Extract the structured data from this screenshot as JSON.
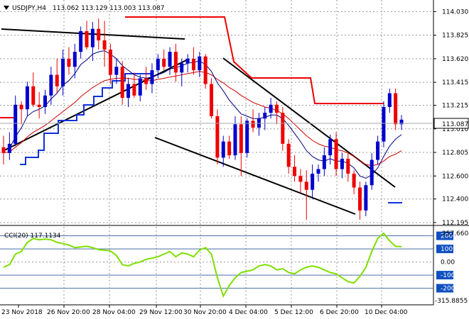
{
  "header": {
    "symbol_label": "USDJPY,H4",
    "ohlc": "113.062 113.129 113.003 113.087"
  },
  "indicator": {
    "label": "CCI(20) 117.1134",
    "scale_top": "257.6604",
    "scale_bottom": "-315.8855",
    "levels": [
      "200",
      "100",
      "0.00",
      "-100",
      "-200"
    ],
    "highlighted_levels": [
      "200",
      "100",
      "-100",
      "-200"
    ],
    "level_values": [
      200,
      100,
      0,
      -100,
      -200
    ],
    "range": [
      -315.8855,
      257.6604
    ]
  },
  "colors": {
    "bull": "#0000cc",
    "bear": "#ee0000",
    "cci": "#7fe000",
    "price_tag_bg": "#ffffff",
    "level_tag_bg": "#1050c0",
    "grid": "#9a9a9a"
  },
  "chart_data": {
    "type": "candlestick",
    "instrument": "USDJPY",
    "timeframe": "H4",
    "last_price": "113.087",
    "y_ticks": [
      "114.030",
      "113.825",
      "113.620",
      "113.415",
      "113.215",
      "113.010",
      "112.805",
      "112.600",
      "112.400",
      "112.195"
    ],
    "ylim": [
      112.17,
      114.1
    ],
    "x_ticks": [
      "23 Nov 2018",
      "26 Nov 20:00",
      "28 Nov 04:00",
      "29 Nov 12:00",
      "30 Nov 20:00",
      "4 Dec 04:00",
      "5 Dec 12:00",
      "6 Dec 20:00",
      "10 Dec 04:00"
    ],
    "candles": [
      [
        112.85,
        112.95,
        112.7,
        112.8
      ],
      [
        112.8,
        112.98,
        112.74,
        112.88
      ],
      [
        112.88,
        113.3,
        112.86,
        113.22
      ],
      [
        113.22,
        113.25,
        113.05,
        113.18
      ],
      [
        113.18,
        113.42,
        113.12,
        113.38
      ],
      [
        113.38,
        113.5,
        113.2,
        113.22
      ],
      [
        113.22,
        113.33,
        113.1,
        113.2
      ],
      [
        113.2,
        113.35,
        113.14,
        113.3
      ],
      [
        113.3,
        113.55,
        113.22,
        113.48
      ],
      [
        113.48,
        113.62,
        113.32,
        113.38
      ],
      [
        113.38,
        113.7,
        113.3,
        113.62
      ],
      [
        113.62,
        113.72,
        113.48,
        113.55
      ],
      [
        113.55,
        113.75,
        113.45,
        113.68
      ],
      [
        113.68,
        113.9,
        113.62,
        113.86
      ],
      [
        113.86,
        113.95,
        113.7,
        113.72
      ],
      [
        113.72,
        113.94,
        113.6,
        113.88
      ],
      [
        113.88,
        113.97,
        113.7,
        113.78
      ],
      [
        113.78,
        113.95,
        113.55,
        113.7
      ],
      [
        113.7,
        113.75,
        113.4,
        113.48
      ],
      [
        113.48,
        113.62,
        113.4,
        113.55
      ],
      [
        113.55,
        113.6,
        113.22,
        113.28
      ],
      [
        113.28,
        113.45,
        113.2,
        113.4
      ],
      [
        113.4,
        113.5,
        113.28,
        113.3
      ],
      [
        113.3,
        113.48,
        113.25,
        113.45
      ],
      [
        113.45,
        113.55,
        113.35,
        113.4
      ],
      [
        113.4,
        113.58,
        113.32,
        113.52
      ],
      [
        113.52,
        113.66,
        113.45,
        113.62
      ],
      [
        113.62,
        113.7,
        113.52,
        113.55
      ],
      [
        113.55,
        113.72,
        113.48,
        113.68
      ],
      [
        113.68,
        113.75,
        113.42,
        113.5
      ],
      [
        113.5,
        113.62,
        113.38,
        113.58
      ],
      [
        113.58,
        113.66,
        113.5,
        113.62
      ],
      [
        113.62,
        113.72,
        113.48,
        113.52
      ],
      [
        113.52,
        113.68,
        113.46,
        113.64
      ],
      [
        113.64,
        113.66,
        113.36,
        113.4
      ],
      [
        113.4,
        113.45,
        113.1,
        113.12
      ],
      [
        113.12,
        113.18,
        112.7,
        112.76
      ],
      [
        112.76,
        112.95,
        112.68,
        112.9
      ],
      [
        112.9,
        112.95,
        112.75,
        112.78
      ],
      [
        112.78,
        113.12,
        112.74,
        113.05
      ],
      [
        113.05,
        113.12,
        112.6,
        112.8
      ],
      [
        112.8,
        113.1,
        112.76,
        113.08
      ],
      [
        113.08,
        113.18,
        112.98,
        113.02
      ],
      [
        113.02,
        113.15,
        112.95,
        113.1
      ],
      [
        113.1,
        113.2,
        113.0,
        113.15
      ],
      [
        113.15,
        113.28,
        113.1,
        113.22
      ],
      [
        113.22,
        113.25,
        113.05,
        113.15
      ],
      [
        113.15,
        113.2,
        112.82,
        112.88
      ],
      [
        112.88,
        112.92,
        112.62,
        112.68
      ],
      [
        112.68,
        112.78,
        112.55,
        112.6
      ],
      [
        112.6,
        112.66,
        112.45,
        112.55
      ],
      [
        112.55,
        112.65,
        112.22,
        112.48
      ],
      [
        112.48,
        112.7,
        112.4,
        112.62
      ],
      [
        112.62,
        112.7,
        112.55,
        112.66
      ],
      [
        112.66,
        112.85,
        112.6,
        112.78
      ],
      [
        112.78,
        112.96,
        112.7,
        112.92
      ],
      [
        112.92,
        112.98,
        112.6,
        112.66
      ],
      [
        112.66,
        112.8,
        112.58,
        112.75
      ],
      [
        112.75,
        112.8,
        112.55,
        112.62
      ],
      [
        112.62,
        112.65,
        112.44,
        112.5
      ],
      [
        112.5,
        112.55,
        112.22,
        112.3
      ],
      [
        112.3,
        112.55,
        112.25,
        112.52
      ],
      [
        112.52,
        112.8,
        112.48,
        112.74
      ],
      [
        112.74,
        112.95,
        112.7,
        112.9
      ],
      [
        112.9,
        113.25,
        112.85,
        113.2
      ],
      [
        113.2,
        113.36,
        113.15,
        113.32
      ],
      [
        113.32,
        113.36,
        113.0,
        113.05
      ],
      [
        113.05,
        113.13,
        113.0,
        113.09
      ]
    ],
    "sma_fast": [
      112.82,
      112.84,
      112.94,
      113.02,
      113.12,
      113.16,
      113.18,
      113.21,
      113.27,
      113.32,
      113.39,
      113.43,
      113.49,
      113.57,
      113.61,
      113.66,
      113.68,
      113.69,
      113.66,
      113.62,
      113.56,
      113.52,
      113.48,
      113.46,
      113.45,
      113.46,
      113.48,
      113.5,
      113.53,
      113.54,
      113.56,
      113.58,
      113.59,
      113.6,
      113.57,
      113.51,
      113.41,
      113.34,
      113.26,
      113.2,
      113.14,
      113.12,
      113.1,
      113.1,
      113.11,
      113.13,
      113.13,
      113.1,
      113.04,
      112.97,
      112.9,
      112.82,
      112.77,
      112.74,
      112.73,
      112.75,
      112.73,
      112.73,
      112.71,
      112.67,
      112.6,
      112.58,
      112.61,
      112.67,
      112.77,
      112.86,
      112.92,
      112.96
    ],
    "sma_slow": [
      112.8,
      112.81,
      112.85,
      112.89,
      112.94,
      112.98,
      113.01,
      113.04,
      113.08,
      113.12,
      113.16,
      113.2,
      113.24,
      113.29,
      113.33,
      113.37,
      113.4,
      113.43,
      113.44,
      113.45,
      113.45,
      113.45,
      113.44,
      113.44,
      113.43,
      113.43,
      113.44,
      113.45,
      113.46,
      113.47,
      113.48,
      113.49,
      113.5,
      113.51,
      113.5,
      113.48,
      113.44,
      113.41,
      113.37,
      113.34,
      113.3,
      113.27,
      113.24,
      113.22,
      113.2,
      113.19,
      113.17,
      113.14,
      113.1,
      113.05,
      113.0,
      112.95,
      112.91,
      112.88,
      112.86,
      112.85,
      112.83,
      112.82,
      112.8,
      112.77,
      112.73,
      112.7,
      112.69,
      112.7,
      112.73,
      112.77,
      112.79,
      112.82
    ],
    "cci": [
      -40,
      -20,
      60,
      80,
      150,
      180,
      170,
      175,
      170,
      150,
      140,
      130,
      110,
      115,
      120,
      110,
      95,
      90,
      85,
      50,
      -20,
      -30,
      -10,
      0,
      20,
      30,
      40,
      60,
      80,
      40,
      70,
      60,
      40,
      90,
      110,
      60,
      -120,
      -260,
      -180,
      -120,
      -80,
      -70,
      -60,
      -30,
      -20,
      -30,
      -60,
      -50,
      -80,
      -90,
      -60,
      -40,
      -30,
      -40,
      -60,
      -80,
      -90,
      -120,
      -150,
      -160,
      -110,
      -40,
      80,
      180,
      220,
      160,
      120,
      117
    ]
  }
}
